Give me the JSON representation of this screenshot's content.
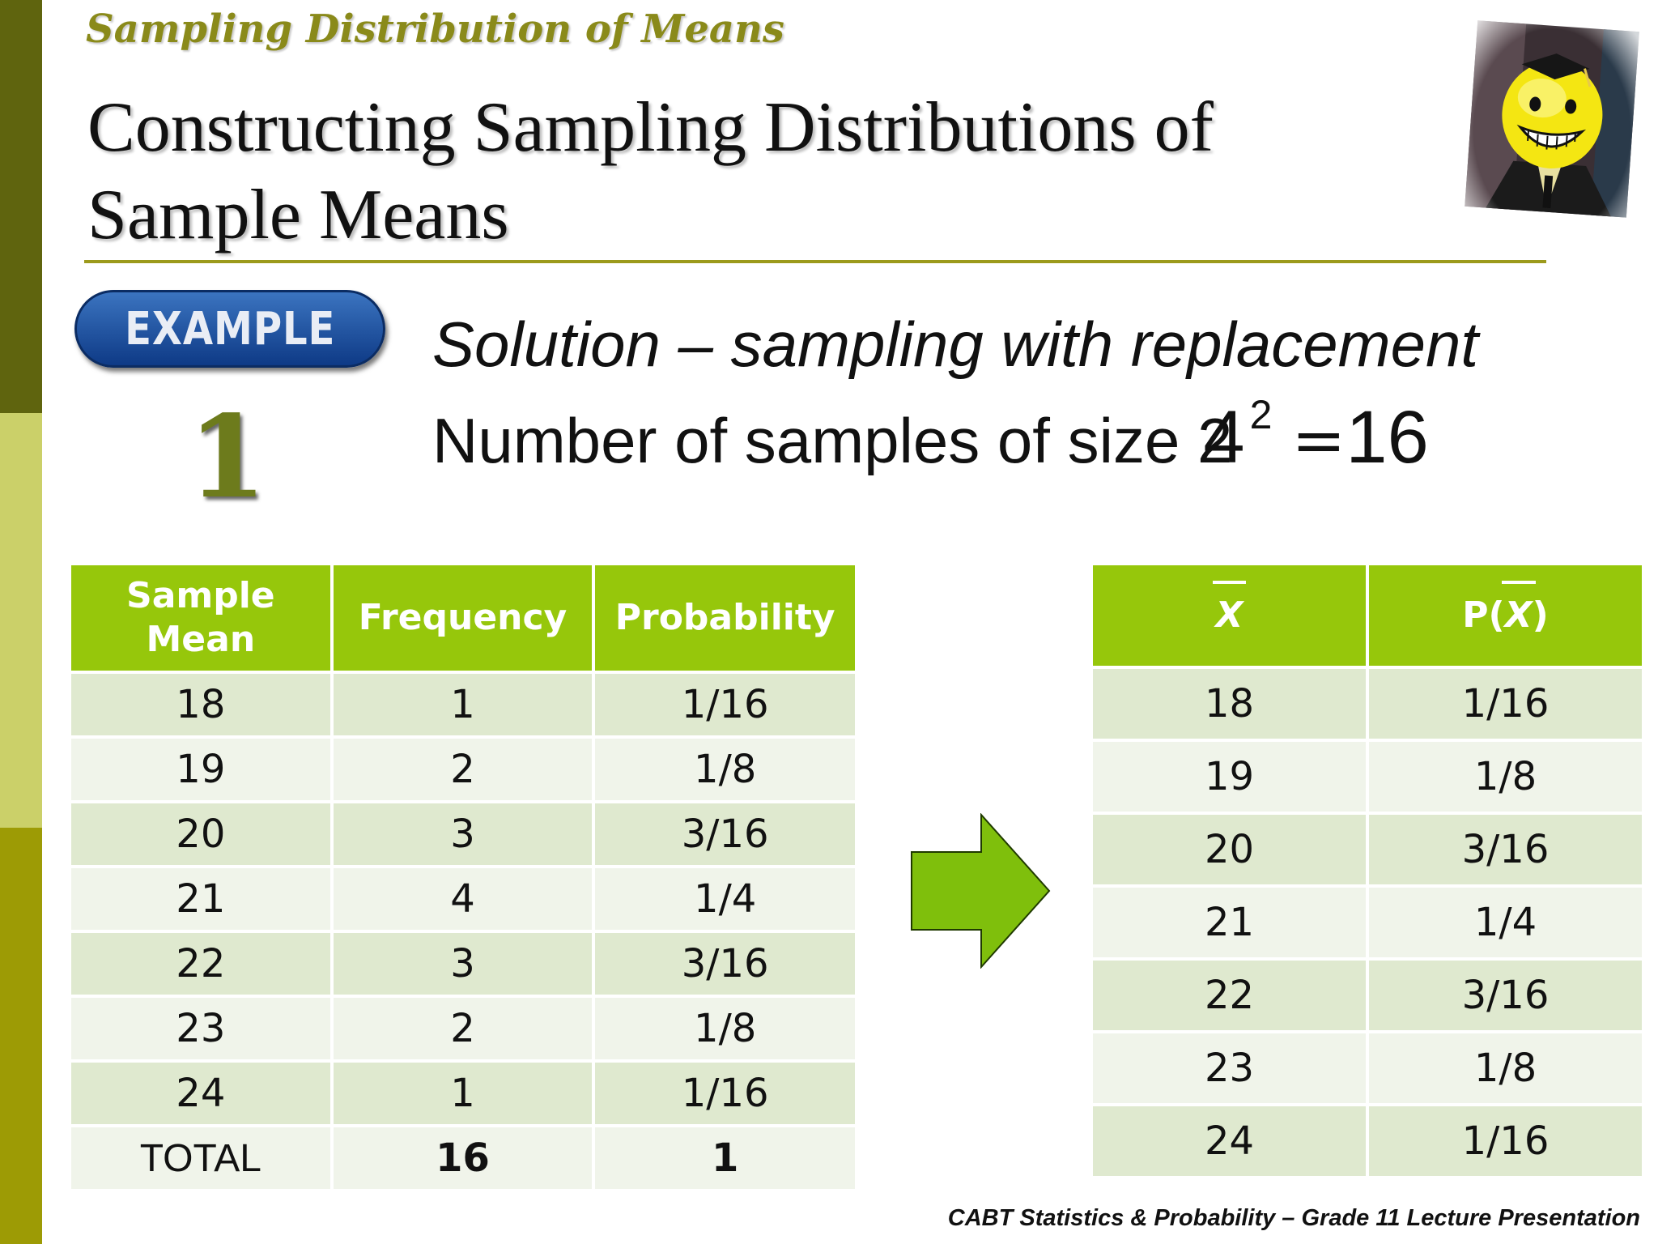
{
  "header": {
    "kicker": "Sampling Distribution of Means",
    "title": "Constructing Sampling Distributions of Sample Means"
  },
  "example": {
    "badge_label": "EXAMPLE",
    "number": "1"
  },
  "solution": {
    "heading": "Solution – sampling with replacement",
    "count_prefix": "Number of samples of size 2",
    "base": "4",
    "exponent": "2",
    "equals": "=",
    "result": "16"
  },
  "table_frequency": {
    "headers": [
      "Sample Mean",
      "Frequency",
      "Probability"
    ],
    "rows": [
      [
        "18",
        "1",
        "1/16"
      ],
      [
        "19",
        "2",
        "1/8"
      ],
      [
        "20",
        "3",
        "3/16"
      ],
      [
        "21",
        "4",
        "1/4"
      ],
      [
        "22",
        "3",
        "3/16"
      ],
      [
        "23",
        "2",
        "1/8"
      ],
      [
        "24",
        "1",
        "1/16"
      ]
    ],
    "total": [
      "TOTAL",
      "16",
      "1"
    ]
  },
  "table_distribution": {
    "headers": {
      "x_label": "X",
      "p_prefix": "P(",
      "p_var": "X",
      "p_suffix": ")"
    },
    "rows": [
      [
        "18",
        "1/16"
      ],
      [
        "19",
        "1/8"
      ],
      [
        "20",
        "3/16"
      ],
      [
        "21",
        "1/4"
      ],
      [
        "22",
        "3/16"
      ],
      [
        "23",
        "1/8"
      ],
      [
        "24",
        "1/16"
      ]
    ]
  },
  "colors": {
    "header_green": "#96c70b",
    "arrow_green": "#7fbf0c",
    "row_dark": "#dfe9cf",
    "row_light": "#f0f4ea",
    "badge_blue": "#1f57a8",
    "sidebar": [
      "#5f640e",
      "#cbd069",
      "#9d9b05"
    ]
  },
  "icons": {
    "arrow": "right-arrow-icon",
    "avatar": "avatar"
  },
  "footer": {
    "text": "CABT Statistics & Probability – Grade 11 Lecture Presentation"
  }
}
